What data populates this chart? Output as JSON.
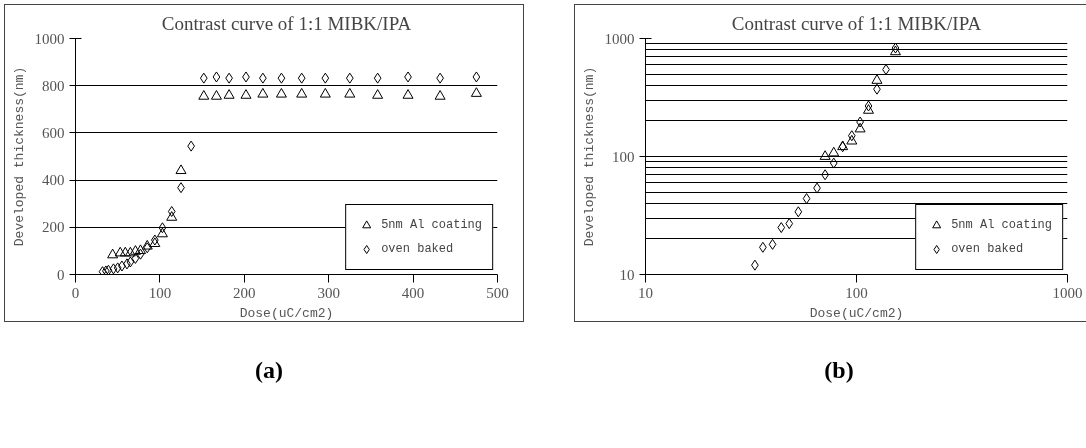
{
  "chart_data": [
    {
      "type": "scatter",
      "title": "Contrast curve of 1:1 MIBK/IPA",
      "xlabel": "Dose(uC/cm2)",
      "ylabel": "Developed thickness(nm)",
      "xlim": [
        0,
        500
      ],
      "xticks": [
        0,
        100,
        200,
        300,
        400,
        500
      ],
      "ylim": [
        0,
        1000
      ],
      "yticks": [
        0,
        200,
        400,
        600,
        800,
        1000
      ],
      "grid": "y",
      "legend": "bottom right",
      "annotations": [
        "(a)"
      ],
      "series": [
        {
          "name": "5nm Al coating",
          "color": "#000000",
          "marker": "triangle",
          "x": [
            44,
            53,
            59,
            65,
            71,
            77,
            85,
            94,
            103,
            114,
            125,
            152,
            167,
            182,
            202,
            222,
            244,
            268,
            296,
            325,
            358,
            394,
            432,
            475
          ],
          "values": [
            83,
            91,
            91,
            91,
            98,
            101,
            120,
            131,
            172,
            242,
            440,
            755,
            755,
            759,
            759,
            764,
            764,
            764,
            764,
            764,
            759,
            759,
            755,
            767
          ]
        },
        {
          "name": "oven baked",
          "color": "#000000",
          "marker": "diamond",
          "x": [
            32,
            36,
            39,
            45,
            50,
            55,
            61,
            65,
            71,
            77,
            85,
            94,
            103,
            114,
            125,
            137,
            152,
            167,
            182,
            202,
            222,
            244,
            268,
            296,
            325,
            358,
            394,
            432,
            475
          ],
          "values": [
            12,
            15,
            18,
            24,
            28,
            36,
            45,
            53,
            68,
            86,
            113,
            146,
            198,
            267,
            368,
            544,
            832,
            837,
            832,
            837,
            832,
            832,
            832,
            832,
            832,
            832,
            837,
            832,
            837
          ]
        }
      ]
    },
    {
      "type": "scatter",
      "title": "Contrast curve of 1:1 MIBK/IPA",
      "xlabel": "Dose(uC/cm2)",
      "ylabel": "Developed thickness(nm)",
      "log": "xy",
      "xlim": [
        10,
        1000
      ],
      "xticks": [
        10,
        100,
        1000
      ],
      "ylim": [
        10,
        1000
      ],
      "yticks": [
        10,
        100,
        1000
      ],
      "grid": "y",
      "legend": "bottom right",
      "annotations": [
        "(b)"
      ],
      "series": [
        {
          "name": "5nm Al coating",
          "color": "#000000",
          "marker": "triangle",
          "x": [
            71,
            78,
            86,
            95,
            104,
            114,
            125,
            153
          ],
          "values": [
            100,
            107,
            121,
            135,
            171,
            246,
            441,
            771
          ]
        },
        {
          "name": "oven baked",
          "color": "#000000",
          "marker": "diamond",
          "x": [
            33,
            36,
            40,
            44,
            48,
            53,
            58,
            65,
            71,
            78,
            86,
            95,
            104,
            114,
            125,
            138,
            153
          ],
          "values": [
            12,
            17,
            18,
            25,
            27,
            34,
            44,
            54,
            70,
            88,
            121,
            150,
            196,
            268,
            372,
            546,
            830
          ]
        }
      ]
    }
  ]
}
